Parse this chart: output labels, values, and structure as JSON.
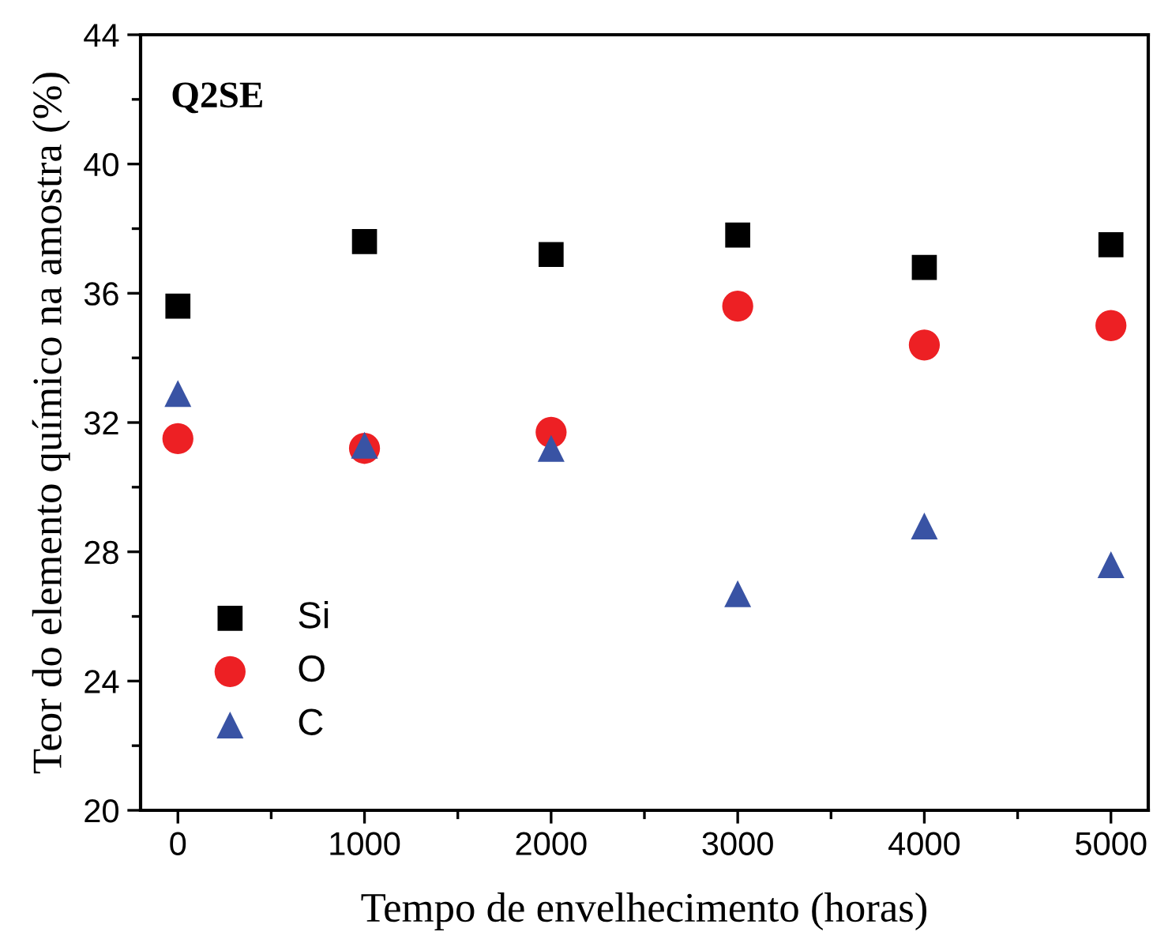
{
  "chart_data": {
    "type": "scatter",
    "xlabel": "Tempo de envelhecimento (horas)",
    "ylabel": "Teor do elemento químico na amostra (%)",
    "annotations": [
      "Q2SE"
    ],
    "x": [
      0,
      1000,
      2000,
      3000,
      4000,
      5000
    ],
    "series": [
      {
        "name": "Si",
        "color": "#000000",
        "marker": "square",
        "values": [
          35.6,
          37.6,
          37.2,
          37.8,
          36.8,
          37.5
        ]
      },
      {
        "name": "O",
        "color": "#ed2024",
        "marker": "circle",
        "values": [
          31.5,
          31.2,
          31.7,
          35.6,
          34.4,
          35.0
        ]
      },
      {
        "name": "C",
        "color": "#3953a4",
        "marker": "triangle",
        "values": [
          32.9,
          31.3,
          31.2,
          26.7,
          28.8,
          27.6
        ]
      }
    ],
    "xlim": [
      -200,
      5200
    ],
    "xticks": [
      0,
      1000,
      2000,
      3000,
      4000,
      5000
    ],
    "ylim": [
      20,
      44
    ],
    "yticks": [
      20,
      24,
      28,
      32,
      36,
      40,
      44
    ],
    "grid": false,
    "legend": "bottom left"
  }
}
